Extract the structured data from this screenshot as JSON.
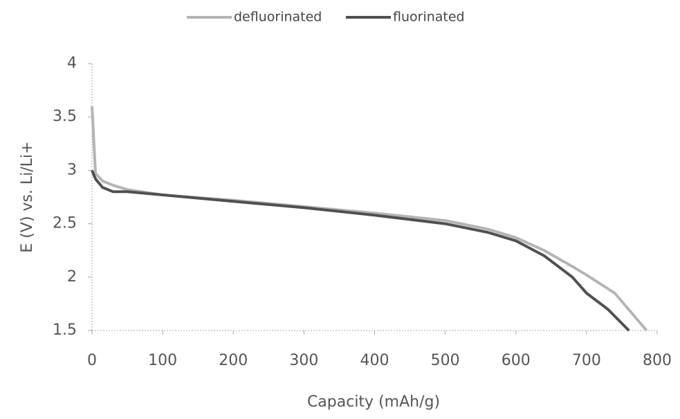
{
  "chart_data": {
    "type": "line",
    "xlabel": "Capacity (mAh/g)",
    "ylabel": "E (V) vs. Li/Li+",
    "xlim": [
      0,
      800
    ],
    "xticks": [
      0,
      100,
      200,
      300,
      400,
      500,
      600,
      700,
      800
    ],
    "ylim": [
      1.5,
      4
    ],
    "yticks": [
      {
        "value": 4,
        "label": "4"
      },
      3.5,
      3,
      2.5,
      2,
      1.5
    ],
    "grid": false,
    "legend": "top",
    "series": [
      {
        "name": "defluorinated",
        "color": "#b4b4b4",
        "x": [
          0,
          5,
          15,
          30,
          50,
          100,
          200,
          300,
          400,
          500,
          560,
          600,
          640,
          680,
          700,
          740,
          785
        ],
        "values": [
          3.6,
          2.97,
          2.9,
          2.86,
          2.82,
          2.77,
          2.72,
          2.66,
          2.6,
          2.53,
          2.45,
          2.37,
          2.25,
          2.1,
          2.02,
          1.85,
          1.5
        ]
      },
      {
        "name": "fluorinated",
        "color": "#505050",
        "x": [
          0,
          5,
          15,
          30,
          50,
          100,
          200,
          300,
          400,
          500,
          560,
          600,
          640,
          680,
          700,
          730,
          760
        ],
        "values": [
          3.0,
          2.92,
          2.84,
          2.8,
          2.8,
          2.77,
          2.71,
          2.65,
          2.58,
          2.5,
          2.42,
          2.34,
          2.2,
          2.0,
          1.85,
          1.7,
          1.5
        ]
      }
    ]
  }
}
